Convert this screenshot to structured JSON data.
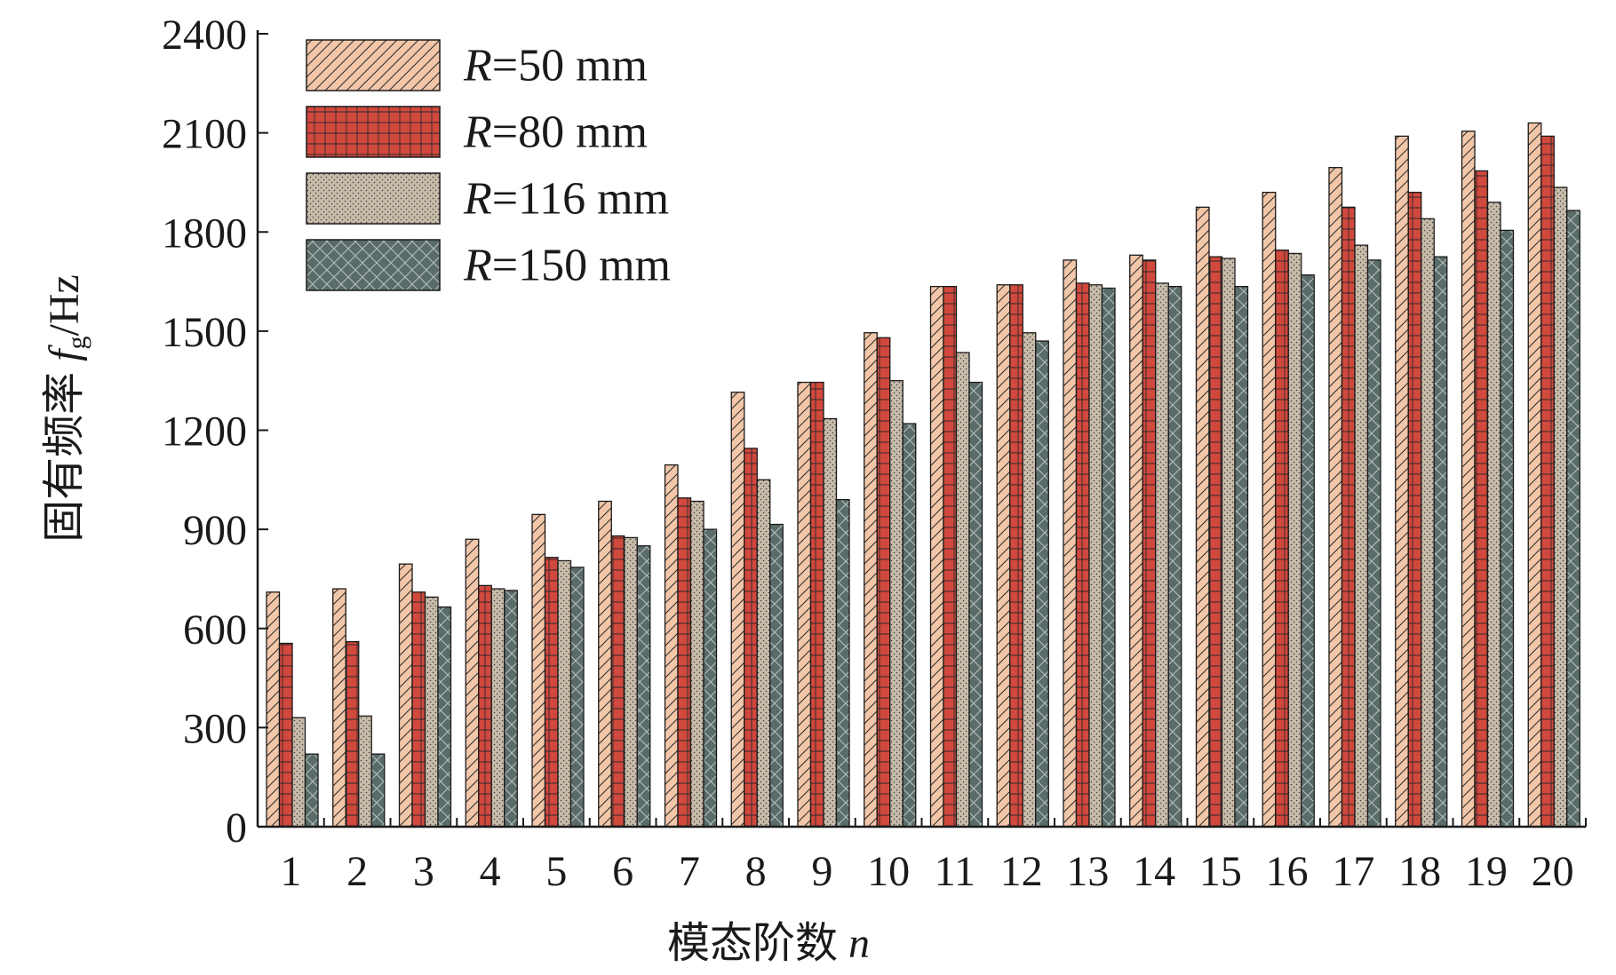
{
  "chart_data": {
    "type": "bar",
    "ylabel": {
      "main": "固有频率 ",
      "var": "f",
      "sub": "g",
      "unit": "/Hz"
    },
    "xlabel": {
      "main": "模态阶数 ",
      "var": "n"
    },
    "ylim": [
      0,
      2400
    ],
    "yticks": [
      0,
      300,
      600,
      900,
      1200,
      1500,
      1800,
      2100,
      2400
    ],
    "categories": [
      "1",
      "2",
      "3",
      "4",
      "5",
      "6",
      "7",
      "8",
      "9",
      "10",
      "11",
      "12",
      "13",
      "14",
      "15",
      "16",
      "17",
      "18",
      "19",
      "20"
    ],
    "grid": false,
    "legend_position": "top-left",
    "series": [
      {
        "name": "R=50 mm",
        "legend": {
          "var": "R",
          "text": "=50 mm"
        },
        "color": "#f2c6a8",
        "pattern": "diagonal-hatch",
        "values": [
          710,
          720,
          795,
          870,
          945,
          985,
          1095,
          1315,
          1345,
          1495,
          1635,
          1640,
          1715,
          1730,
          1875,
          1920,
          1995,
          2090,
          2105,
          2130
        ]
      },
      {
        "name": "R=80 mm",
        "legend": {
          "var": "R",
          "text": "=80 mm"
        },
        "color": "#d1483d",
        "pattern": "grid-lines",
        "values": [
          555,
          560,
          710,
          730,
          815,
          880,
          995,
          1145,
          1345,
          1480,
          1635,
          1640,
          1645,
          1715,
          1725,
          1745,
          1875,
          1920,
          1985,
          2090
        ]
      },
      {
        "name": "R=116 mm",
        "legend": {
          "var": "R",
          "text": "=116 mm"
        },
        "color": "#c7bba9",
        "pattern": "dots",
        "values": [
          330,
          335,
          695,
          720,
          805,
          875,
          985,
          1050,
          1235,
          1350,
          1435,
          1495,
          1640,
          1645,
          1720,
          1735,
          1760,
          1840,
          1890,
          1935
        ]
      },
      {
        "name": "R=150 mm",
        "legend": {
          "var": "R",
          "text": "=150 mm"
        },
        "color": "#5a6c6a",
        "pattern": "cross-hatch",
        "values": [
          220,
          220,
          665,
          715,
          785,
          850,
          900,
          915,
          990,
          1220,
          1345,
          1470,
          1630,
          1635,
          1635,
          1670,
          1715,
          1725,
          1805,
          1865
        ]
      }
    ]
  }
}
